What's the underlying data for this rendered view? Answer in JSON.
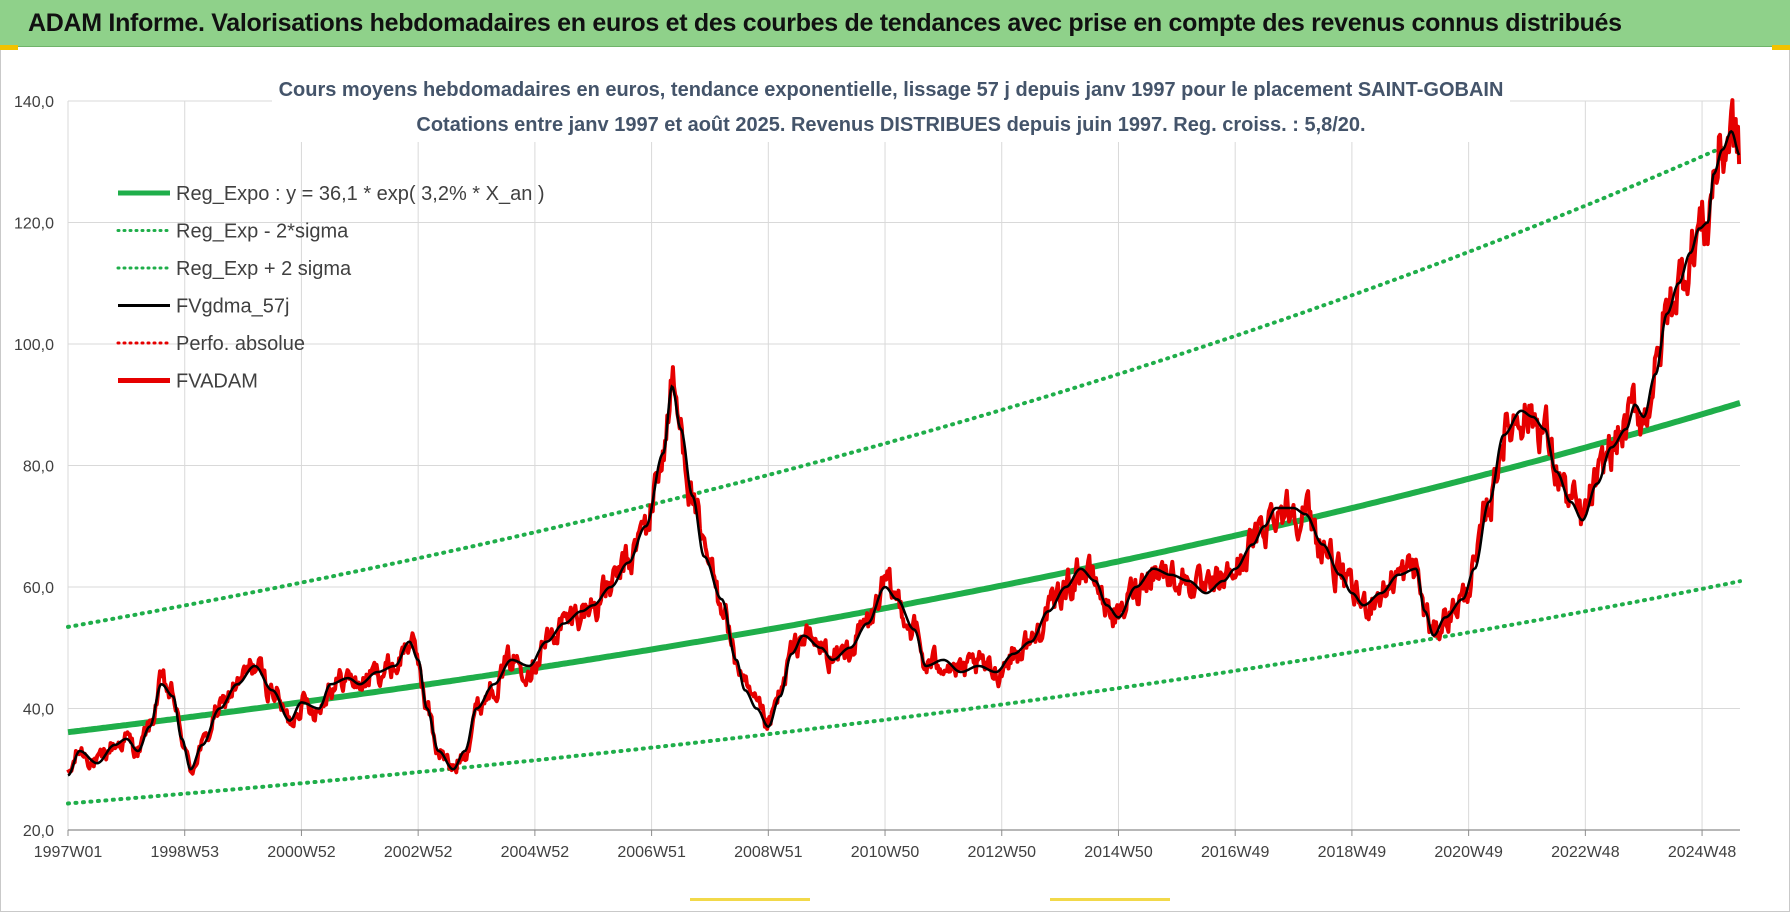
{
  "banner": {
    "title": "ADAM Informe. Valorisations hebdomadaires en euros et des courbes de tendances avec prise en compte des revenus connus distribués"
  },
  "chart_data": {
    "type": "line",
    "title_line1": "Cours moyens hebdomadaires en euros, tendance exponentielle, lissage 57 j depuis janv 1997 pour le placement SAINT-GOBAIN",
    "title_line2": "Cotations entre janv 1997 et août 2025. Revenus DISTRIBUES depuis juin 1997. Reg. croiss. : 5,8/20.",
    "ylim": [
      20,
      140
    ],
    "yticks": [
      "20,0",
      "40,0",
      "60,0",
      "80,0",
      "100,0",
      "120,0",
      "140,0"
    ],
    "xlim": [
      1997.0,
      2025.65
    ],
    "xticks": [
      {
        "label": "1997W01",
        "t": 1997.0
      },
      {
        "label": "1998W53",
        "t": 1999.0
      },
      {
        "label": "2000W52",
        "t": 2001.0
      },
      {
        "label": "2002W52",
        "t": 2003.0
      },
      {
        "label": "2004W52",
        "t": 2005.0
      },
      {
        "label": "2006W51",
        "t": 2007.0
      },
      {
        "label": "2008W51",
        "t": 2009.0
      },
      {
        "label": "2010W50",
        "t": 2011.0
      },
      {
        "label": "2012W50",
        "t": 2013.0
      },
      {
        "label": "2014W50",
        "t": 2015.0
      },
      {
        "label": "2016W49",
        "t": 2017.0
      },
      {
        "label": "2018W49",
        "t": 2019.0
      },
      {
        "label": "2020W49",
        "t": 2021.0
      },
      {
        "label": "2022W48",
        "t": 2023.0
      },
      {
        "label": "2024W48",
        "t": 2025.0
      }
    ],
    "legend": [
      {
        "name": "Reg_Expo : y = 36,1 * exp( 3,2% *  X_an )",
        "color": "#1fae4a",
        "style": "solid-thick"
      },
      {
        "name": "Reg_Exp - 2*sigma",
        "color": "#1fae4a",
        "style": "dotted"
      },
      {
        "name": "Reg_Exp + 2 sigma",
        "color": "#1fae4a",
        "style": "dotted"
      },
      {
        "name": "FVgdma_57j",
        "color": "#000000",
        "style": "solid"
      },
      {
        "name": "Perfo. absolue",
        "color": "#e60000",
        "style": "dotted"
      },
      {
        "name": "FVADAM",
        "color": "#e60000",
        "style": "solid-thick"
      }
    ],
    "regression": {
      "a": 36.1,
      "b": 0.032,
      "lower_factor": 0.675,
      "upper_factor": 1.48
    },
    "series_fvadam_knots": [
      [
        1997.0,
        29
      ],
      [
        1997.2,
        33
      ],
      [
        1997.5,
        31
      ],
      [
        1997.8,
        34
      ],
      [
        1998.0,
        35
      ],
      [
        1998.2,
        33
      ],
      [
        1998.4,
        37
      ],
      [
        1998.6,
        44
      ],
      [
        1998.8,
        42
      ],
      [
        1998.95,
        35
      ],
      [
        1999.1,
        30
      ],
      [
        1999.3,
        34
      ],
      [
        1999.6,
        40
      ],
      [
        1999.9,
        44
      ],
      [
        2000.2,
        47
      ],
      [
        2000.5,
        43
      ],
      [
        2000.8,
        38
      ],
      [
        2001.0,
        41
      ],
      [
        2001.3,
        40
      ],
      [
        2001.5,
        44
      ],
      [
        2001.8,
        45
      ],
      [
        2002.0,
        44
      ],
      [
        2002.3,
        46
      ],
      [
        2002.6,
        47
      ],
      [
        2002.85,
        51
      ],
      [
        2003.0,
        48
      ],
      [
        2003.15,
        40
      ],
      [
        2003.35,
        33
      ],
      [
        2003.6,
        30
      ],
      [
        2003.8,
        33
      ],
      [
        2004.0,
        40
      ],
      [
        2004.3,
        44
      ],
      [
        2004.6,
        48
      ],
      [
        2004.9,
        47
      ],
      [
        2005.2,
        51
      ],
      [
        2005.5,
        54
      ],
      [
        2005.8,
        56
      ],
      [
        2006.0,
        57
      ],
      [
        2006.3,
        60
      ],
      [
        2006.6,
        64
      ],
      [
        2006.9,
        70
      ],
      [
        2007.2,
        82
      ],
      [
        2007.35,
        93
      ],
      [
        2007.5,
        86
      ],
      [
        2007.7,
        75
      ],
      [
        2007.9,
        65
      ],
      [
        2008.2,
        58
      ],
      [
        2008.45,
        48
      ],
      [
        2008.6,
        43
      ],
      [
        2008.8,
        40
      ],
      [
        2009.0,
        37
      ],
      [
        2009.2,
        42
      ],
      [
        2009.4,
        49
      ],
      [
        2009.6,
        52
      ],
      [
        2009.9,
        50
      ],
      [
        2010.1,
        48
      ],
      [
        2010.4,
        50
      ],
      [
        2010.7,
        54
      ],
      [
        2011.0,
        60
      ],
      [
        2011.2,
        58
      ],
      [
        2011.5,
        53
      ],
      [
        2011.7,
        47
      ],
      [
        2012.0,
        48
      ],
      [
        2012.3,
        46
      ],
      [
        2012.6,
        47
      ],
      [
        2012.9,
        46
      ],
      [
        2013.2,
        49
      ],
      [
        2013.5,
        51
      ],
      [
        2013.8,
        56
      ],
      [
        2014.1,
        60
      ],
      [
        2014.35,
        63
      ],
      [
        2014.6,
        61
      ],
      [
        2014.8,
        57
      ],
      [
        2015.0,
        55
      ],
      [
        2015.3,
        60
      ],
      [
        2015.6,
        63
      ],
      [
        2015.9,
        62
      ],
      [
        2016.2,
        61
      ],
      [
        2016.5,
        59
      ],
      [
        2016.8,
        61
      ],
      [
        2017.0,
        63
      ],
      [
        2017.3,
        67
      ],
      [
        2017.5,
        70
      ],
      [
        2017.7,
        73
      ],
      [
        2018.0,
        73
      ],
      [
        2018.2,
        72
      ],
      [
        2018.5,
        67
      ],
      [
        2018.8,
        62
      ],
      [
        2019.0,
        59
      ],
      [
        2019.2,
        57
      ],
      [
        2019.5,
        59
      ],
      [
        2019.8,
        62
      ],
      [
        2020.1,
        63
      ],
      [
        2020.25,
        56
      ],
      [
        2020.4,
        52
      ],
      [
        2020.6,
        55
      ],
      [
        2020.9,
        58
      ],
      [
        2021.1,
        63
      ],
      [
        2021.35,
        74
      ],
      [
        2021.6,
        85
      ],
      [
        2021.9,
        89
      ],
      [
        2022.1,
        88
      ],
      [
        2022.3,
        86
      ],
      [
        2022.5,
        79
      ],
      [
        2022.75,
        74
      ],
      [
        2022.95,
        71
      ],
      [
        2023.2,
        77
      ],
      [
        2023.45,
        83
      ],
      [
        2023.7,
        86
      ],
      [
        2023.85,
        90
      ],
      [
        2024.0,
        88
      ],
      [
        2024.2,
        95
      ],
      [
        2024.4,
        105
      ],
      [
        2024.6,
        110
      ],
      [
        2024.8,
        115
      ],
      [
        2024.95,
        119
      ],
      [
        2025.1,
        120
      ],
      [
        2025.2,
        128
      ],
      [
        2025.35,
        132
      ],
      [
        2025.5,
        135
      ],
      [
        2025.65,
        131
      ]
    ]
  }
}
